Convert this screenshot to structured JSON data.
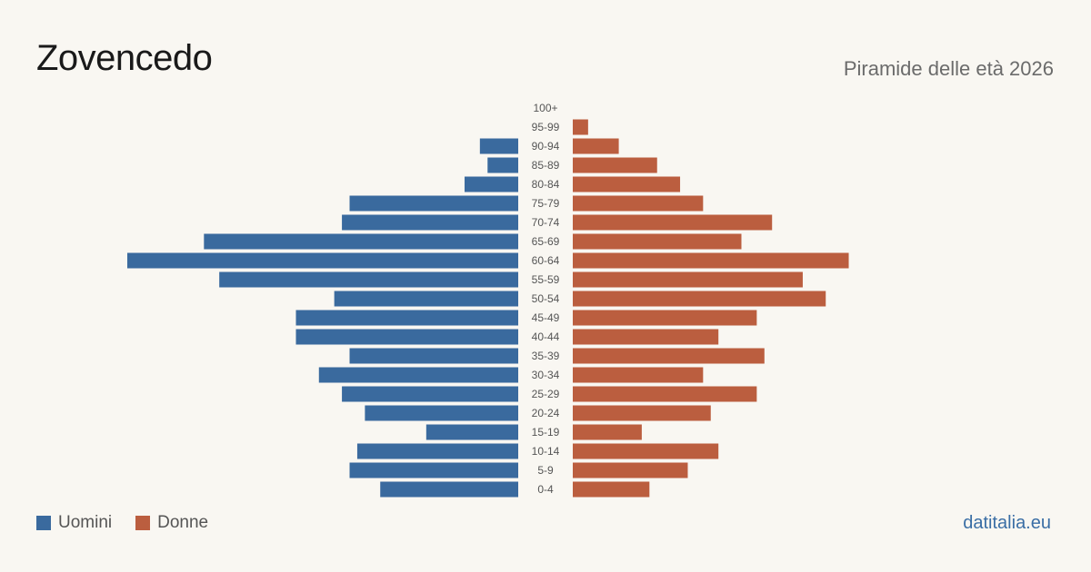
{
  "header": {
    "title": "Zovencedo",
    "subtitle": "Piramide delle età 2026"
  },
  "legend": {
    "men_label": "Uomini",
    "women_label": "Donne"
  },
  "source": "datitalia.eu",
  "colors": {
    "men": "#3a6a9e",
    "women": "#bb5e3f",
    "age_label": "#555555"
  },
  "chart_data": {
    "type": "bar",
    "orientation": "horizontal-pyramid",
    "categories": [
      "100+",
      "95-99",
      "90-94",
      "85-89",
      "80-84",
      "75-79",
      "70-74",
      "65-69",
      "60-64",
      "55-59",
      "50-54",
      "45-49",
      "40-44",
      "35-39",
      "30-34",
      "25-29",
      "20-24",
      "15-19",
      "10-14",
      "5-9",
      "0-4"
    ],
    "series": [
      {
        "name": "Uomini",
        "values": [
          0,
          0,
          5,
          4,
          7,
          22,
          23,
          41,
          51,
          39,
          24,
          29,
          29,
          22,
          26,
          23,
          20,
          12,
          21,
          22,
          18
        ]
      },
      {
        "name": "Donne",
        "values": [
          0,
          2,
          6,
          11,
          14,
          17,
          26,
          22,
          36,
          30,
          33,
          24,
          19,
          25,
          17,
          24,
          18,
          9,
          19,
          15,
          10
        ]
      }
    ],
    "xlim": [
      0,
      60
    ],
    "grid": false,
    "legend_position": "bottom-left"
  }
}
